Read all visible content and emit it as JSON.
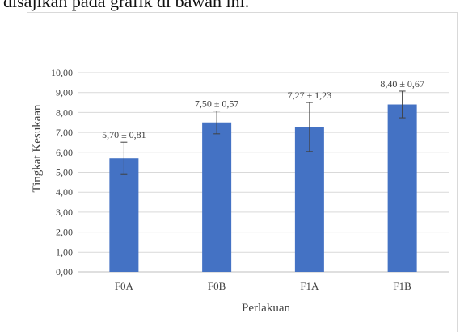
{
  "caption": "disajikan pada grafik di bawah ini.",
  "chart_data": {
    "type": "bar",
    "title": "",
    "xlabel": "Perlakuan",
    "ylabel": "Tingkat Kesukaan",
    "categories": [
      "F0A",
      "F0B",
      "F1A",
      "F1B"
    ],
    "values": [
      5.7,
      7.5,
      7.27,
      8.4
    ],
    "errors": [
      0.81,
      0.57,
      1.23,
      0.67
    ],
    "data_labels": [
      "5,70 ± 0,81",
      "7,50 ± 0,57",
      "7,27 ± 1,23",
      "8,40 ± 0,67"
    ],
    "ylim": [
      0,
      10
    ],
    "yticks": [
      0,
      1,
      2,
      3,
      4,
      5,
      6,
      7,
      8,
      9,
      10
    ],
    "ytick_labels": [
      "0,00",
      "1,00",
      "2,00",
      "3,00",
      "4,00",
      "5,00",
      "6,00",
      "7,00",
      "8,00",
      "9,00",
      "10,00"
    ],
    "grid": true,
    "bar_color": "#4472c4",
    "error_color": "#404040"
  }
}
